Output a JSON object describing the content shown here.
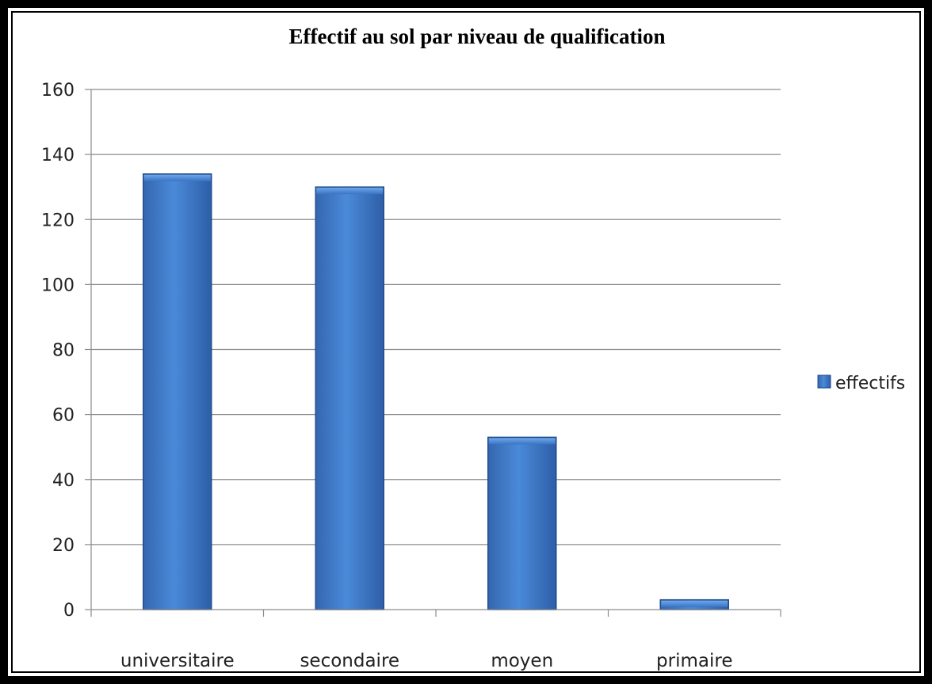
{
  "chart_data": {
    "type": "bar",
    "title": "Effectif au sol par niveau de qualification",
    "categories": [
      "universitaire",
      "secondaire",
      "moyen",
      "primaire"
    ],
    "series": [
      {
        "name": "effectifs",
        "values": [
          134,
          130,
          53,
          3
        ]
      }
    ],
    "ylim": [
      0,
      160
    ],
    "yticks": [
      0,
      20,
      40,
      60,
      80,
      100,
      120,
      140,
      160
    ],
    "grid": true,
    "legend": "right",
    "bar_color": "#3f7cd0",
    "bar_edge_color": "#1f4e8c"
  }
}
